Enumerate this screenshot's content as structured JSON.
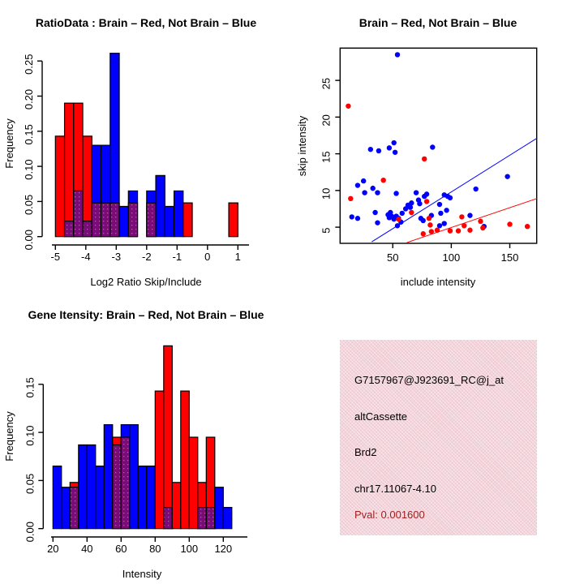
{
  "panels": {
    "ratio_hist": {
      "title": "RatioData : Brain – Red, Not Brain – Blue",
      "xlabel": "Log2 Ratio Skip/Include",
      "ylabel": "Frequency"
    },
    "scatter": {
      "title": "Brain – Red, Not Brain – Blue",
      "xlabel": "include intensity",
      "ylabel": "skip intensity"
    },
    "gene_hist": {
      "title": "Gene Itensity: Brain – Red, Not Brain – Blue",
      "xlabel": "Intensity",
      "ylabel": "Frequency"
    },
    "info": {
      "bg_color": "#efcad3",
      "lines": [
        {
          "text": "G7157967@J923691_RC@j_at",
          "color": "#000000"
        },
        {
          "text": "altCassette",
          "color": "#000000"
        },
        {
          "text": "Brd2",
          "color": "#000000"
        },
        {
          "text": "chr17.11067-4.10",
          "color": "#000000"
        },
        {
          "text": "Pval: 0.001600",
          "color": "#9e2121"
        }
      ]
    }
  },
  "colors": {
    "brain_red": "#ff0000",
    "not_brain_blue": "#0000ff",
    "overlap_purple": "#7a0c7a",
    "overlap_dot": "#b85a9a"
  },
  "chart_data": [
    {
      "type": "bar",
      "title": "RatioData : Brain – Red, Not Brain – Blue",
      "xlabel": "Log2 Ratio Skip/Include",
      "ylabel": "Frequency",
      "bin_start": -5.0,
      "bin_width": 0.3,
      "xticks": [
        "-5",
        "-4",
        "-3",
        "-2",
        "-1",
        "0",
        "1"
      ],
      "yticks": [
        "0.00",
        "0.05",
        "0.10",
        "0.15",
        "0.20",
        "0.25"
      ],
      "xlim": [
        -5,
        1
      ],
      "ylim": [
        0,
        0.26
      ],
      "grid": false,
      "legend": "none",
      "series": [
        {
          "name": "Not Brain",
          "color": "#0000ff",
          "values": [
            0,
            0.022,
            0.065,
            0.022,
            0.13,
            0.13,
            0.261,
            0.043,
            0.065,
            0,
            0.065,
            0.087,
            0.043,
            0.065,
            0,
            0,
            0,
            0,
            0,
            0
          ]
        },
        {
          "name": "Brain",
          "color": "#ff0000",
          "values": [
            0.143,
            0.19,
            0.19,
            0.143,
            0.048,
            0.048,
            0.048,
            0,
            0.048,
            0,
            0.048,
            0,
            0,
            0,
            0.048,
            0,
            0,
            0,
            0,
            0.048
          ]
        }
      ]
    },
    {
      "type": "scatter",
      "title": "Brain – Red, Not Brain – Blue",
      "xlabel": "include intensity",
      "ylabel": "skip intensity",
      "xticks": [
        50,
        100,
        150
      ],
      "yticks": [
        5,
        10,
        15,
        20,
        25
      ],
      "xlim": [
        5,
        173
      ],
      "ylim": [
        2.8,
        29.4
      ],
      "grid": false,
      "legend": "none",
      "series": [
        {
          "name": "Not Brain",
          "color": "#0000ff",
          "points": [
            [
              54,
              28.5
            ],
            [
              31,
              15.6
            ],
            [
              38,
              15.4
            ],
            [
              47,
              15.8
            ],
            [
              51,
              16.5
            ],
            [
              52,
              15.2
            ],
            [
              84,
              15.9
            ],
            [
              20,
              10.7
            ],
            [
              25,
              11.3
            ],
            [
              26,
              9.7
            ],
            [
              33,
              10.3
            ],
            [
              37,
              9.7
            ],
            [
              53,
              9.6
            ],
            [
              15,
              6.4
            ],
            [
              20,
              6.2
            ],
            [
              35,
              7.0
            ],
            [
              37,
              5.6
            ],
            [
              46,
              6.7
            ],
            [
              48,
              7.0
            ],
            [
              47,
              6.3
            ],
            [
              49,
              6.5
            ],
            [
              51,
              6.1
            ],
            [
              53,
              6.5
            ],
            [
              55,
              6.2
            ],
            [
              57,
              5.7
            ],
            [
              54,
              5.2
            ],
            [
              58,
              6.9
            ],
            [
              61,
              7.5
            ],
            [
              63,
              8.0
            ],
            [
              65,
              7.7
            ],
            [
              66,
              8.3
            ],
            [
              70,
              9.7
            ],
            [
              72,
              8.7
            ],
            [
              73,
              8.2
            ],
            [
              74,
              6.2
            ],
            [
              76,
              5.9
            ],
            [
              77,
              9.2
            ],
            [
              79,
              9.5
            ],
            [
              83,
              6.6
            ],
            [
              90,
              8.1
            ],
            [
              94,
              9.4
            ],
            [
              97,
              9.2
            ],
            [
              99,
              9.0
            ],
            [
              91,
              6.9
            ],
            [
              94,
              5.5
            ],
            [
              96,
              7.3
            ],
            [
              90,
              5.2
            ],
            [
              116,
              6.6
            ],
            [
              121,
              10.2
            ],
            [
              128,
              5.1
            ],
            [
              148,
              11.9
            ]
          ]
        },
        {
          "name": "Brain",
          "color": "#ff0000",
          "points": [
            [
              12,
              21.5
            ],
            [
              14,
              8.9
            ],
            [
              42,
              11.4
            ],
            [
              77,
              14.3
            ],
            [
              55,
              6.1
            ],
            [
              66,
              7.0
            ],
            [
              79,
              8.5
            ],
            [
              76,
              4.1
            ],
            [
              81,
              6.2
            ],
            [
              82,
              5.3
            ],
            [
              83,
              4.4
            ],
            [
              88,
              4.6
            ],
            [
              99,
              4.5
            ],
            [
              106,
              4.5
            ],
            [
              109,
              6.4
            ],
            [
              111,
              5.2
            ],
            [
              116,
              4.6
            ],
            [
              125,
              5.8
            ],
            [
              127,
              4.9
            ],
            [
              150,
              5.4
            ],
            [
              165,
              5.1
            ]
          ]
        }
      ],
      "lines": [
        {
          "name": "not-brain-fit",
          "color": "#0000ff",
          "x1": 32,
          "y1": 3.0,
          "x2": 173,
          "y2": 17.1
        },
        {
          "name": "brain-fit",
          "color": "#ff0000",
          "x1": 62,
          "y1": 2.9,
          "x2": 173,
          "y2": 8.9
        }
      ]
    },
    {
      "type": "bar",
      "title": "Gene Itensity: Brain – Red, Not Brain – Blue",
      "xlabel": "Intensity",
      "ylabel": "Frequency",
      "bin_start": 20,
      "bin_width": 5,
      "xticks": [
        "20",
        "40",
        "60",
        "80",
        "100",
        "120"
      ],
      "yticks": [
        "0.00",
        "0.05",
        "0.10",
        "0.15"
      ],
      "xlim": [
        20,
        125
      ],
      "ylim": [
        0,
        0.19
      ],
      "grid": false,
      "legend": "none",
      "series": [
        {
          "name": "Not Brain",
          "color": "#0000ff",
          "values": [
            0.065,
            0.043,
            0.043,
            0.087,
            0.087,
            0.065,
            0.108,
            0.087,
            0.108,
            0.108,
            0.065,
            0.065,
            0,
            0.022,
            0,
            0,
            0,
            0.022,
            0.022,
            0.043,
            0.022
          ]
        },
        {
          "name": "Brain",
          "color": "#ff0000",
          "values": [
            0,
            0,
            0.048,
            0,
            0,
            0,
            0,
            0.095,
            0.095,
            0,
            0,
            0,
            0.143,
            0.19,
            0.048,
            0.143,
            0.095,
            0.048,
            0.095,
            0,
            0
          ]
        }
      ]
    }
  ]
}
